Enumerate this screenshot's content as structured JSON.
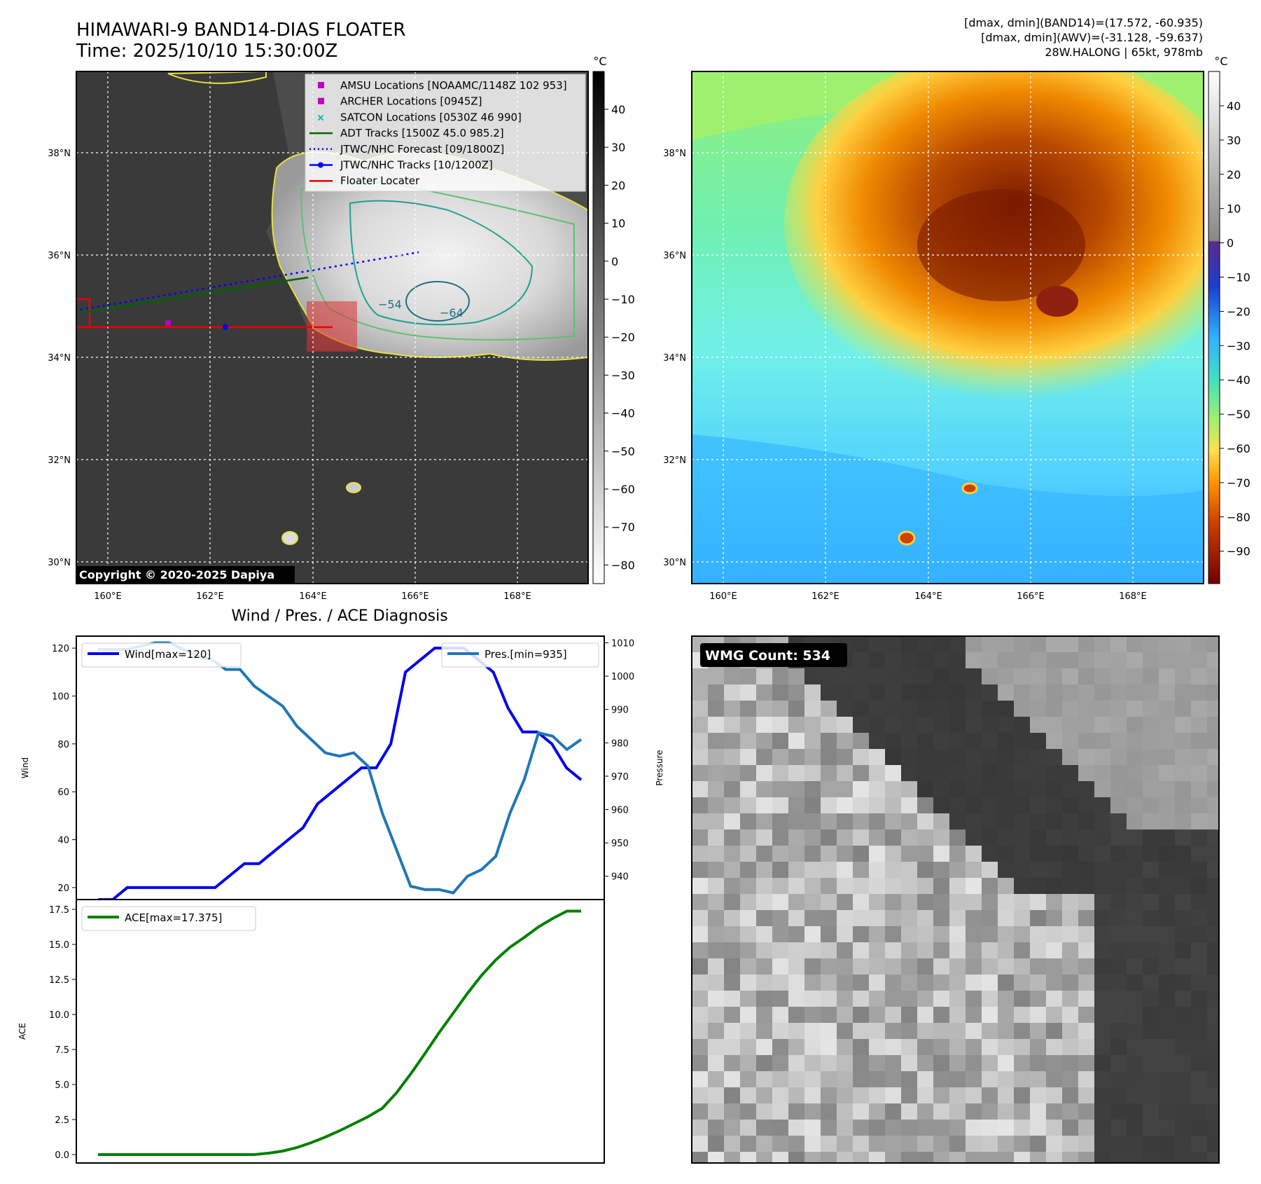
{
  "header": {
    "title_line1": "HIMAWARI-9 BAND14-DIAS FLOATER",
    "title_line2": "Time: 2025/10/10 15:30:00Z",
    "info_line1": "[dmax, dmin](BAND14)=(17.572, -60.935)",
    "info_line2": "[dmax, dmin](AWV)=(-31.128, -59.637)",
    "info_line3": "28W.HALONG | 65kt, 978mb"
  },
  "colors": {
    "wind": "#0000ee",
    "pressure": "#1f77b4",
    "ace": "#008000",
    "adt": "#006400",
    "forecast": "#0000ff",
    "floater": "#ee0000",
    "amsu": "#c000c0",
    "satcon": "#00b0b0"
  },
  "map": {
    "lat_labels": [
      "38°N",
      "36°N",
      "34°N",
      "32°N",
      "30°N"
    ],
    "lon_labels": [
      "160°E",
      "162°E",
      "164°E",
      "166°E",
      "168°E"
    ],
    "copyright": "Copyright © 2020-2025 Dapiya",
    "contour_labels": [
      "−54",
      "−64"
    ],
    "legend": [
      {
        "label": "AMSU Locations [NOAAMC/1148Z 102 953]",
        "icon": "square-marker"
      },
      {
        "label": "ARCHER Locations [0945Z]",
        "icon": "square-marker"
      },
      {
        "label": "SATCON Locations [0530Z 46 990]",
        "icon": "x-marker"
      },
      {
        "label": "ADT Tracks [1500Z 45.0 985.2]",
        "icon": "solid-line"
      },
      {
        "label": "JTWC/NHC Forecast [09/1800Z]",
        "icon": "dotted-line"
      },
      {
        "label": "JTWC/NHC Tracks [10/1200Z]",
        "icon": "line-dot"
      },
      {
        "label": "Floater Locater",
        "icon": "solid-line"
      }
    ]
  },
  "colorbar_ir": {
    "unit": "°C",
    "ticks": [
      "40",
      "30",
      "20",
      "10",
      "0",
      "−10",
      "−20",
      "−30",
      "−40",
      "−50",
      "−60",
      "−70",
      "−80"
    ]
  },
  "colorbar_wv": {
    "unit": "°C",
    "ticks": [
      "40",
      "30",
      "20",
      "10",
      "0",
      "−10",
      "−20",
      "−30",
      "−40",
      "−50",
      "−60",
      "−70",
      "−80",
      "−90"
    ]
  },
  "wmg": {
    "label": "WMG Count: 534"
  },
  "chart_data": [
    {
      "type": "line",
      "title": "Wind / Pres. / ACE Diagnosis",
      "ylabel": "Wind",
      "y2label": "Pressure",
      "ylim": [
        15,
        125
      ],
      "y2lim": [
        933,
        1012
      ],
      "yticks": [
        "20",
        "40",
        "60",
        "80",
        "100",
        "120"
      ],
      "y2ticks": [
        "940",
        "950",
        "960",
        "970",
        "980",
        "990",
        "1000",
        "1010"
      ],
      "series": [
        {
          "name": "Wind[max=120]",
          "axis": "left",
          "values": [
            15,
            15,
            20,
            20,
            20,
            20,
            20,
            20,
            20,
            25,
            30,
            30,
            35,
            40,
            45,
            55,
            60,
            65,
            70,
            70,
            80,
            110,
            115,
            120,
            120,
            120,
            115,
            110,
            95,
            85,
            85,
            80,
            70,
            65
          ]
        },
        {
          "name": "Pres.[min=935]",
          "axis": "right",
          "values": [
            1008,
            1008,
            1008,
            1009,
            1010,
            1010,
            1008,
            1006,
            1005,
            1002,
            1002,
            997,
            994,
            991,
            985,
            981,
            977,
            976,
            977,
            973,
            959,
            948,
            937,
            936,
            936,
            935,
            940,
            942,
            946,
            959,
            969,
            983,
            982,
            978,
            981
          ]
        }
      ]
    },
    {
      "type": "line",
      "ylabel": "ACE",
      "ylim": [
        -0.6,
        18.2
      ],
      "yticks": [
        "0.0",
        "2.5",
        "5.0",
        "7.5",
        "10.0",
        "12.5",
        "15.0",
        "17.5"
      ],
      "series": [
        {
          "name": "ACE[max=17.375]",
          "values": [
            0,
            0,
            0,
            0,
            0,
            0,
            0,
            0,
            0,
            0,
            0,
            0,
            0.1,
            0.25,
            0.5,
            0.85,
            1.25,
            1.7,
            2.2,
            2.7,
            3.3,
            4.4,
            5.75,
            7.2,
            8.7,
            10.1,
            11.5,
            12.8,
            13.9,
            14.8,
            15.5,
            16.25,
            16.85,
            17.375,
            17.375
          ]
        }
      ]
    }
  ]
}
